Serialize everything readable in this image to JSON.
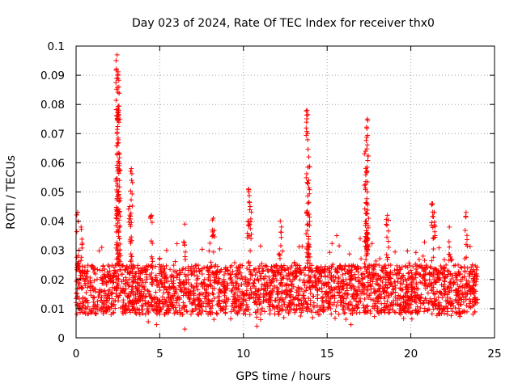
{
  "chart_data": {
    "type": "scatter",
    "title": "Day 023 of 2024, Rate Of TEC Index for receiver thx0",
    "xlabel": "GPS time / hours",
    "ylabel": "ROTI / TECUs",
    "xlim": [
      0,
      25
    ],
    "ylim": [
      0,
      0.1
    ],
    "xticks": [
      0,
      5,
      10,
      15,
      20,
      25
    ],
    "xtick_labels": [
      "0",
      "5",
      "10",
      "15",
      "20",
      "25"
    ],
    "yticks": [
      0,
      0.01,
      0.02,
      0.03,
      0.04,
      0.05,
      0.06,
      0.07,
      0.08,
      0.09,
      0.1
    ],
    "ytick_labels": [
      "0",
      "0.01",
      "0.02",
      "0.03",
      "0.04",
      "0.05",
      "0.06",
      "0.07",
      "0.08",
      "0.09",
      "0.1"
    ],
    "grid": true,
    "marker": "+",
    "series": [
      {
        "name": "ROTI",
        "color": "#ff0000",
        "x_range": [
          0,
          24
        ],
        "typical_band": [
          0.008,
          0.025
        ],
        "peaks": [
          {
            "x": 0.1,
            "y": 0.043
          },
          {
            "x": 0.3,
            "y": 0.038
          },
          {
            "x": 2.45,
            "y": 0.097
          },
          {
            "x": 2.5,
            "y": 0.09
          },
          {
            "x": 2.55,
            "y": 0.078
          },
          {
            "x": 2.6,
            "y": 0.063
          },
          {
            "x": 2.45,
            "y": 0.05
          },
          {
            "x": 3.3,
            "y": 0.058
          },
          {
            "x": 3.2,
            "y": 0.045
          },
          {
            "x": 4.5,
            "y": 0.042
          },
          {
            "x": 6.5,
            "y": 0.039
          },
          {
            "x": 8.2,
            "y": 0.041
          },
          {
            "x": 10.3,
            "y": 0.051
          },
          {
            "x": 10.4,
            "y": 0.045
          },
          {
            "x": 12.2,
            "y": 0.04
          },
          {
            "x": 13.8,
            "y": 0.078
          },
          {
            "x": 13.9,
            "y": 0.062
          },
          {
            "x": 13.85,
            "y": 0.053
          },
          {
            "x": 17.4,
            "y": 0.075
          },
          {
            "x": 17.3,
            "y": 0.064
          },
          {
            "x": 17.35,
            "y": 0.057
          },
          {
            "x": 17.4,
            "y": 0.05
          },
          {
            "x": 18.6,
            "y": 0.042
          },
          {
            "x": 21.3,
            "y": 0.046
          },
          {
            "x": 21.4,
            "y": 0.043
          },
          {
            "x": 22.3,
            "y": 0.038
          },
          {
            "x": 23.3,
            "y": 0.043
          },
          {
            "x": 6.5,
            "y": 0.003
          },
          {
            "x": 10.8,
            "y": 0.004
          }
        ]
      }
    ]
  }
}
